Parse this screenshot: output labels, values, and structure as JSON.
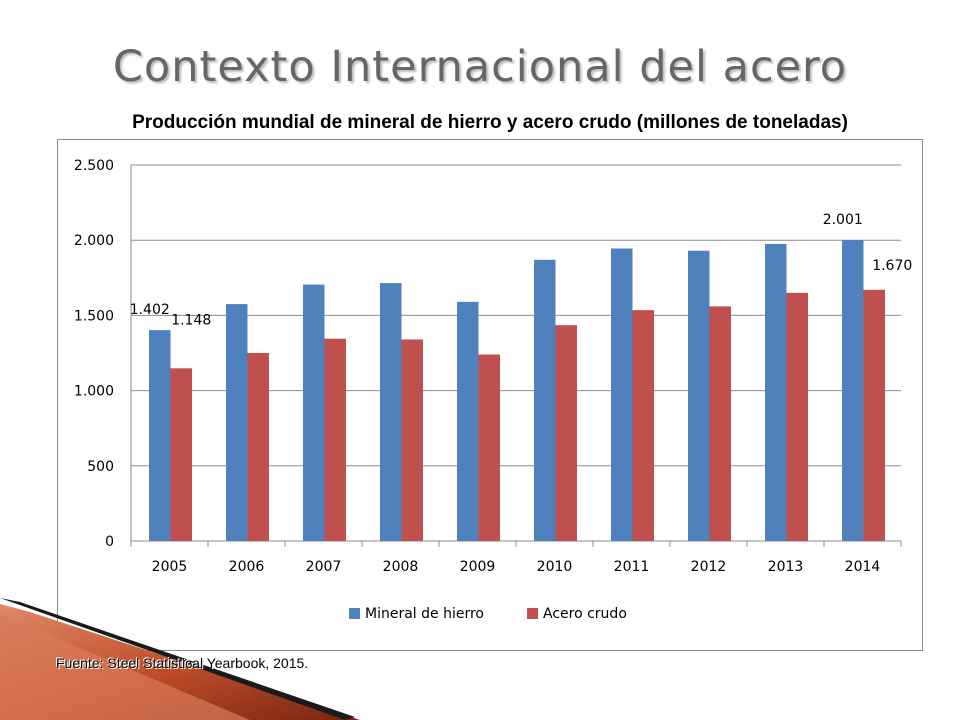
{
  "slide": {
    "title": "Contexto Internacional del acero",
    "source": "Fuente: Steel Statistical Yearbook, 2015."
  },
  "chart_data": {
    "type": "bar",
    "title": "Producción mundial de mineral de hierro y acero crudo (millones de toneladas)",
    "xlabel": "",
    "ylabel": "",
    "categories": [
      "2005",
      "2006",
      "2007",
      "2008",
      "2009",
      "2010",
      "2011",
      "2012",
      "2013",
      "2014"
    ],
    "series": [
      {
        "name": "Mineral de hierro",
        "color": "#4f81bd",
        "values": [
          1402,
          1575,
          1705,
          1715,
          1590,
          1870,
          1945,
          1930,
          1975,
          2001
        ]
      },
      {
        "name": "Acero crudo",
        "color": "#c0504d",
        "values": [
          1148,
          1250,
          1345,
          1340,
          1240,
          1435,
          1535,
          1560,
          1650,
          1670
        ]
      }
    ],
    "data_labels": [
      {
        "series": 0,
        "index": 0,
        "text": "1.402"
      },
      {
        "series": 1,
        "index": 0,
        "text": "1.148"
      },
      {
        "series": 0,
        "index": 9,
        "text": "2.001"
      },
      {
        "series": 1,
        "index": 9,
        "text": "1.670"
      }
    ],
    "ylim": [
      0,
      2500
    ],
    "yticks": [
      0,
      500,
      1000,
      1500,
      2000,
      2500
    ],
    "ytick_labels": [
      "0",
      "500",
      "1.000",
      "1.500",
      "2.000",
      "2.500"
    ],
    "grid": true,
    "legend_position": "bottom"
  }
}
